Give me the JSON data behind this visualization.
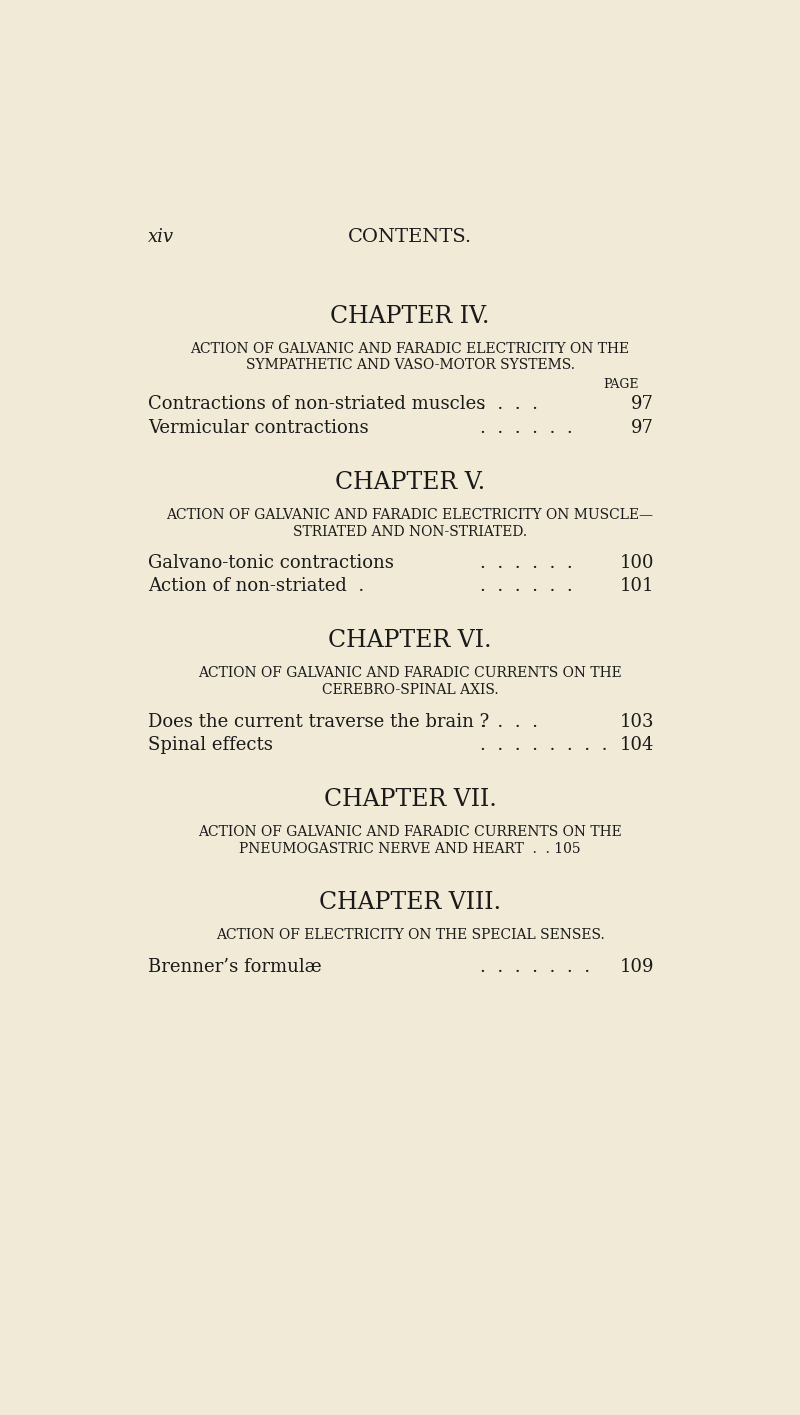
{
  "bg_color": "#f0ead6",
  "text_color": "#1a1a1a",
  "page_number_label": "xiv",
  "header_title": "CONTENTS.",
  "chapters": [
    {
      "title": "CHAPTER IV.",
      "subtitle_lines": [
        "ACTION OF GALVANIC AND FARADIC ELECTRICITY ON THE",
        "SYMPATHETIC AND VASO-MOTOR SYSTEMS."
      ],
      "show_page_label": true,
      "entries": [
        {
          "text": "Contractions of non-striated muscles",
          "dots": ".  .  .  .",
          "page": "97"
        },
        {
          "text": "Vermicular contractions",
          "dots": ".  .  .  .  .  .",
          "page": "97"
        }
      ]
    },
    {
      "title": "CHAPTER V.",
      "subtitle_lines": [
        "ACTION OF GALVANIC AND FARADIC ELECTRICITY ON MUSCLE—",
        "STRIATED AND NON-STRIATED."
      ],
      "show_page_label": false,
      "entries": [
        {
          "text": "Galvano-tonic contractions",
          "dots": ".  .  .  .  .  .",
          "page": "100"
        },
        {
          "text": "Action of non-striated  .",
          "dots": ".  .  .  .  .  .",
          "page": "101"
        }
      ]
    },
    {
      "title": "CHAPTER VI.",
      "subtitle_lines": [
        "ACTION OF GALVANIC AND FARADIC CURRENTS ON THE",
        "CEREBRO-SPINAL AXIS."
      ],
      "show_page_label": false,
      "entries": [
        {
          "text": "Does the current traverse the brain ?",
          "dots": ".  .  .  .",
          "page": "103"
        },
        {
          "text": "Spinal effects",
          "dots": ".  .  .  .  .  .  .  .",
          "page": "104"
        }
      ]
    },
    {
      "title": "CHAPTER VII.",
      "subtitle_lines": [
        "ACTION OF GALVANIC AND FARADIC CURRENTS ON THE",
        "PNEUMOGASTRIC NERVE AND HEART  .  . 105"
      ],
      "show_page_label": false,
      "entries": []
    },
    {
      "title": "CHAPTER VIII.",
      "subtitle_lines": [
        "ACTION OF ELECTRICITY ON THE SPECIAL SENSES."
      ],
      "show_page_label": false,
      "entries": [
        {
          "text": "Brenner’s formulæ",
          "dots": ".  .  .  .  .  .  .",
          "page": "109"
        }
      ]
    }
  ]
}
